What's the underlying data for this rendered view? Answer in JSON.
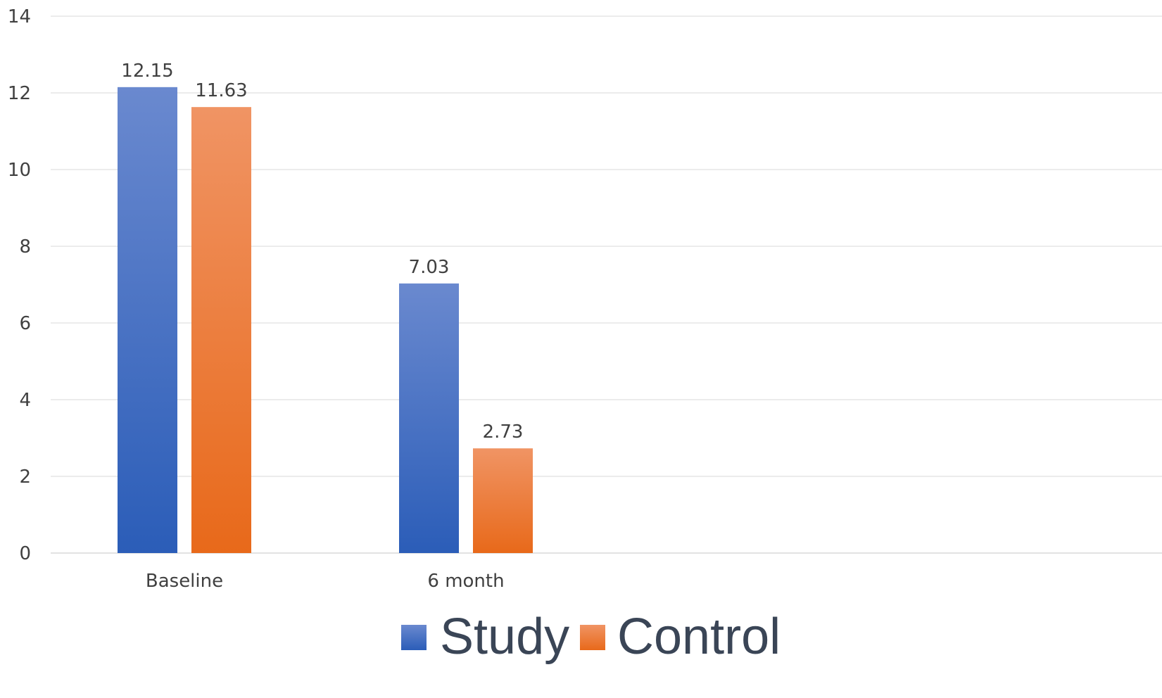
{
  "chart_data": {
    "type": "bar",
    "title": "",
    "xlabel": "",
    "ylabel": "",
    "categories": [
      "Baseline",
      "6 month",
      "",
      ""
    ],
    "series": [
      {
        "name": "Study",
        "values": [
          12.15,
          7.03,
          null,
          null
        ],
        "labels": [
          "12.15",
          "7.03",
          "",
          ""
        ],
        "color_top": "#6a89cf",
        "color_bottom": "#2b5db8"
      },
      {
        "name": "Control",
        "values": [
          11.63,
          2.73,
          null,
          null
        ],
        "labels": [
          "11.63",
          "2.73",
          "",
          ""
        ],
        "color_top": "#f09464",
        "color_bottom": "#e8691a"
      }
    ],
    "ylim": [
      0,
      14
    ],
    "yticks": [
      0,
      2,
      4,
      6,
      8,
      10,
      12,
      14
    ],
    "grid": true,
    "legend_position": "bottom"
  }
}
